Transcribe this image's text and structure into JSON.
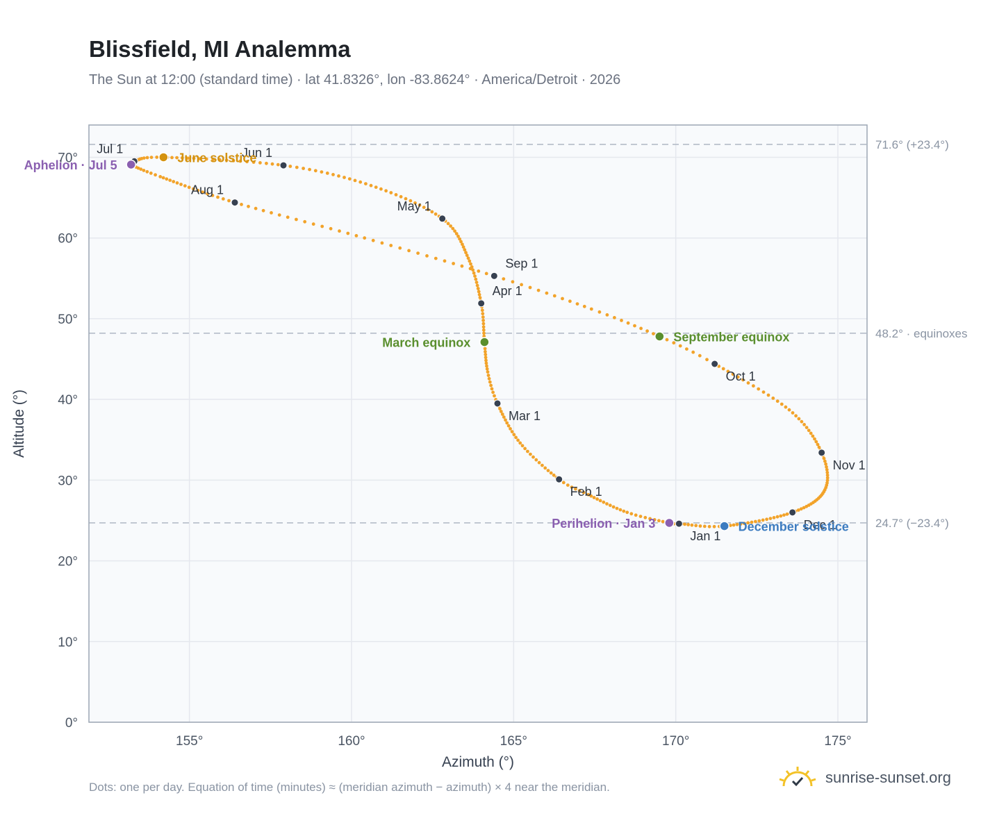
{
  "header": {
    "title": "Blissfield, MI Analemma",
    "subtitle": "The Sun at 12:00 (standard time) · lat 41.8326°, lon -83.8624° · America/Detroit · 2026"
  },
  "footer": {
    "note": "Dots: one per day. Equation of time (minutes) ≈ (meridian azimuth − azimuth) × 4 near the meridian.",
    "brand": "sunrise-sunset.org",
    "brand_icon": "sun-check-icon"
  },
  "colors": {
    "curve": "#f2a32a",
    "month_marker": "#374151",
    "solstice_june": "#d4920f",
    "equinox": "#5a8f2e",
    "solstice_december": "#3d7cc0",
    "apsis": "#8a5fb0",
    "grid": "#e5e8ee",
    "plot_bg": "#f8fafc",
    "axis_border": "#9ca6b4"
  },
  "chart_data": {
    "type": "scatter",
    "xlabel": "Azimuth (°)",
    "ylabel": "Altitude (°)",
    "xlim": [
      151.9,
      175.9
    ],
    "ylim": [
      0,
      74
    ],
    "x_ticks": [
      155,
      160,
      165,
      170,
      175
    ],
    "x_tick_labels": [
      "155°",
      "160°",
      "165°",
      "170°",
      "175°"
    ],
    "y_ticks": [
      0,
      10,
      20,
      30,
      40,
      50,
      60,
      70
    ],
    "y_tick_labels": [
      "0°",
      "10°",
      "20°",
      "30°",
      "40°",
      "50°",
      "60°",
      "70°"
    ],
    "grid": true,
    "reference_lines": [
      {
        "y": 71.6,
        "label": "71.6° (+23.4°)"
      },
      {
        "y": 48.2,
        "label": "48.2° · equinoxes"
      },
      {
        "y": 24.7,
        "label": "24.7° (−23.4°)"
      }
    ],
    "month_markers": [
      {
        "label": "Jan 1",
        "x": 170.1,
        "y": 24.6,
        "pos": "below-right"
      },
      {
        "label": "Feb 1",
        "x": 166.4,
        "y": 30.1,
        "pos": "below-right"
      },
      {
        "label": "Mar 1",
        "x": 164.5,
        "y": 39.5,
        "pos": "below-right"
      },
      {
        "label": "Apr 1",
        "x": 164.0,
        "y": 51.9,
        "pos": "above-right"
      },
      {
        "label": "May 1",
        "x": 162.8,
        "y": 62.4,
        "pos": "above-left"
      },
      {
        "label": "Jun 1",
        "x": 157.9,
        "y": 69.0,
        "pos": "above-left"
      },
      {
        "label": "Jul 1",
        "x": 153.3,
        "y": 69.5,
        "pos": "above-left"
      },
      {
        "label": "Aug 1",
        "x": 156.4,
        "y": 64.4,
        "pos": "above-left"
      },
      {
        "label": "Sep 1",
        "x": 164.4,
        "y": 55.3,
        "pos": "above-right"
      },
      {
        "label": "Oct 1",
        "x": 171.2,
        "y": 44.4,
        "pos": "below-right"
      },
      {
        "label": "Nov 1",
        "x": 174.5,
        "y": 33.4,
        "pos": "below-right"
      },
      {
        "label": "Dec 1",
        "x": 173.6,
        "y": 26.0,
        "pos": "below-right"
      }
    ],
    "events": [
      {
        "label": "June solstice",
        "x": 154.2,
        "y": 70.0,
        "color": "#d4920f",
        "side": "right"
      },
      {
        "label": "March equinox",
        "x": 164.1,
        "y": 47.1,
        "color": "#5a8f2e",
        "side": "left"
      },
      {
        "label": "September equinox",
        "x": 169.5,
        "y": 47.8,
        "color": "#5a8f2e",
        "side": "right"
      },
      {
        "label": "December solstice",
        "x": 171.5,
        "y": 24.3,
        "color": "#3d7cc0",
        "side": "right"
      },
      {
        "label": "Aphelion · Jul 5",
        "x": 153.2,
        "y": 69.1,
        "color": "#8a5fb0",
        "side": "left"
      },
      {
        "label": "Perihelion · Jan 3",
        "x": 169.8,
        "y": 24.7,
        "color": "#8a5fb0",
        "side": "left"
      }
    ],
    "path_anchors": [
      {
        "day": 0,
        "x": 170.1,
        "y": 24.6
      },
      {
        "day": 2,
        "x": 169.8,
        "y": 24.7
      },
      {
        "day": 12,
        "x": 168.5,
        "y": 26.0
      },
      {
        "day": 24,
        "x": 167.3,
        "y": 28.2
      },
      {
        "day": 31,
        "x": 166.4,
        "y": 30.1
      },
      {
        "day": 45,
        "x": 165.2,
        "y": 34.6
      },
      {
        "day": 59,
        "x": 164.5,
        "y": 39.5
      },
      {
        "day": 68,
        "x": 164.2,
        "y": 43.4
      },
      {
        "day": 78,
        "x": 164.1,
        "y": 47.1
      },
      {
        "day": 90,
        "x": 164.0,
        "y": 51.9
      },
      {
        "day": 105,
        "x": 163.6,
        "y": 57.5
      },
      {
        "day": 120,
        "x": 162.8,
        "y": 62.4
      },
      {
        "day": 136,
        "x": 160.6,
        "y": 66.5
      },
      {
        "day": 151,
        "x": 157.9,
        "y": 69.0
      },
      {
        "day": 171,
        "x": 154.2,
        "y": 70.0
      },
      {
        "day": 181,
        "x": 153.3,
        "y": 69.5
      },
      {
        "day": 185,
        "x": 153.2,
        "y": 69.1
      },
      {
        "day": 195,
        "x": 154.1,
        "y": 67.6
      },
      {
        "day": 212,
        "x": 156.4,
        "y": 64.4
      },
      {
        "day": 228,
        "x": 160.4,
        "y": 60.0
      },
      {
        "day": 243,
        "x": 164.4,
        "y": 55.3
      },
      {
        "day": 255,
        "x": 167.4,
        "y": 51.2
      },
      {
        "day": 265,
        "x": 169.5,
        "y": 47.8
      },
      {
        "day": 273,
        "x": 171.2,
        "y": 44.4
      },
      {
        "day": 289,
        "x": 173.5,
        "y": 38.7
      },
      {
        "day": 304,
        "x": 174.5,
        "y": 33.4
      },
      {
        "day": 318,
        "x": 174.6,
        "y": 28.8
      },
      {
        "day": 334,
        "x": 173.6,
        "y": 26.0
      },
      {
        "day": 354,
        "x": 171.5,
        "y": 24.3
      },
      {
        "day": 365,
        "x": 170.1,
        "y": 24.6
      }
    ]
  }
}
